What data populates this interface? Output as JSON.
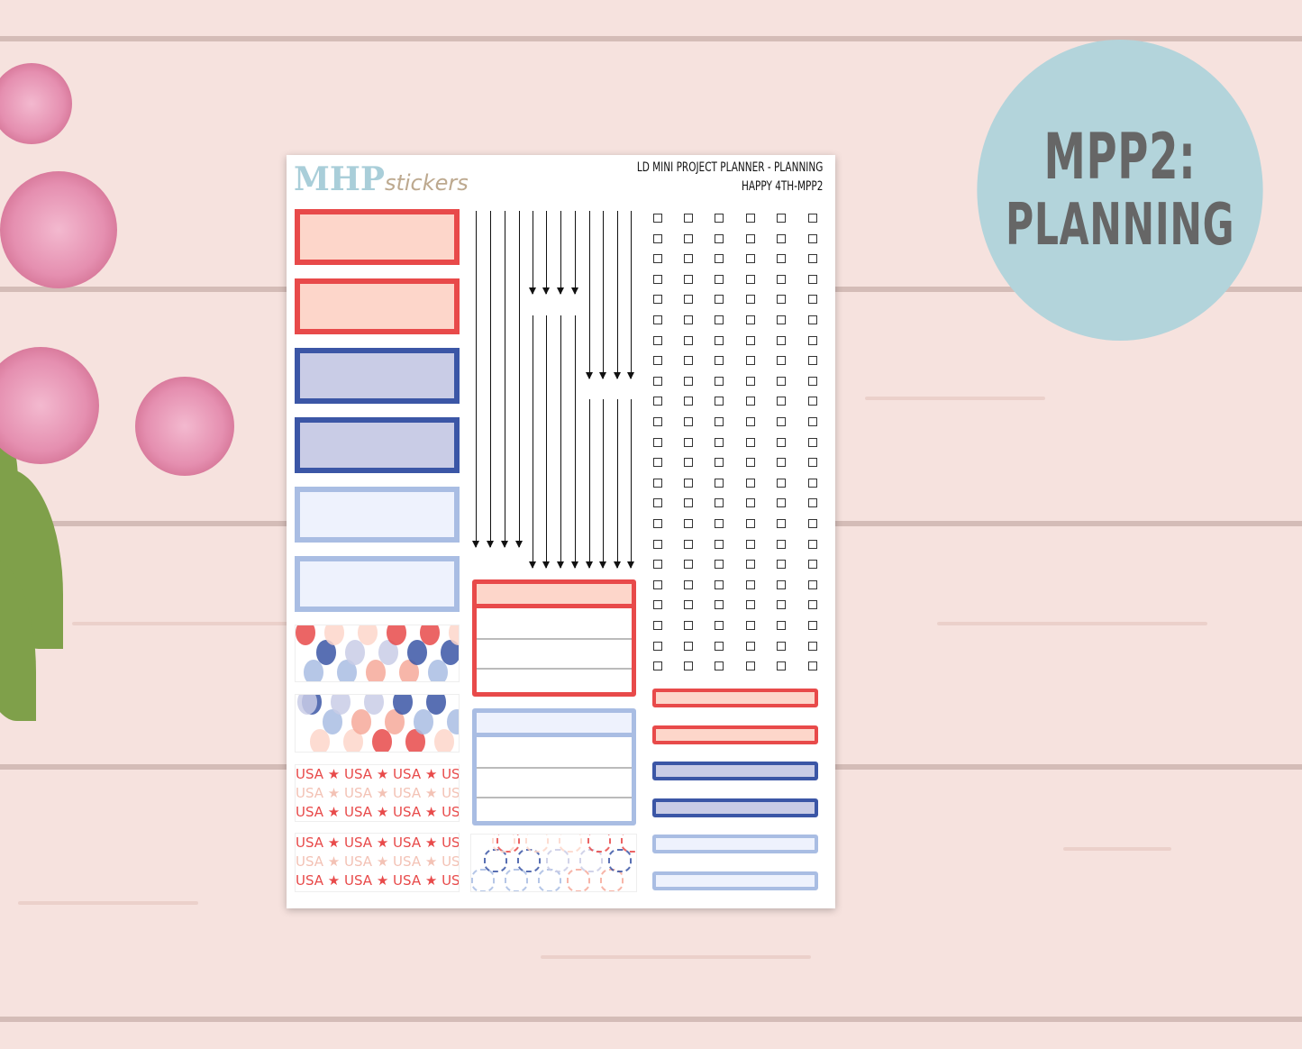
{
  "badge": {
    "line1": "MPP2:",
    "line2": "PLANNING",
    "color": "#b3d4db"
  },
  "sheet": {
    "logo_main": "MHP",
    "logo_script": "stickers",
    "title_line1": "LD MINI PROJECT PLANNER -  PLANNING",
    "title_line2": "HAPPY 4TH-MPP2"
  },
  "colors": {
    "red": "#e84a4a",
    "red_fill": "#fdd6ca",
    "blue": "#3b56a6",
    "blue_fill": "#c9cce6",
    "light": "#a9bde3",
    "light_fill": "#eef2fd"
  },
  "patterns": [
    {
      "type": "balloons"
    },
    {
      "type": "balloons"
    },
    {
      "type": "usa",
      "text": "USA ★ USA ★ USA ★ USA ★ USA"
    },
    {
      "type": "usa",
      "text": "USA ★ USA ★ USA ★ USA ★ USA"
    },
    {
      "type": "flowers"
    }
  ]
}
